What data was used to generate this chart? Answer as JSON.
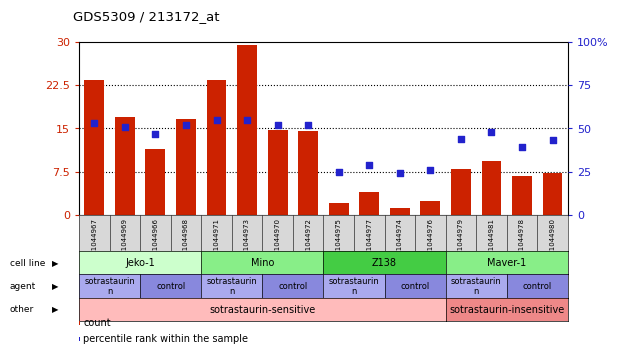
{
  "title": "GDS5309 / 213172_at",
  "samples": [
    "GSM1044967",
    "GSM1044969",
    "GSM1044966",
    "GSM1044968",
    "GSM1044971",
    "GSM1044973",
    "GSM1044970",
    "GSM1044972",
    "GSM1044975",
    "GSM1044977",
    "GSM1044974",
    "GSM1044976",
    "GSM1044979",
    "GSM1044981",
    "GSM1044978",
    "GSM1044980"
  ],
  "counts": [
    23.3,
    17.0,
    11.5,
    16.7,
    23.3,
    29.5,
    14.8,
    14.6,
    2.0,
    4.0,
    1.2,
    2.5,
    8.0,
    9.3,
    6.8,
    7.2
  ],
  "percentiles": [
    53,
    51,
    47,
    52,
    55,
    55,
    52,
    52,
    25,
    29,
    24,
    26,
    44,
    48,
    39,
    43
  ],
  "ylim_left": [
    0,
    30
  ],
  "ylim_right": [
    0,
    100
  ],
  "yticks_left": [
    0,
    7.5,
    15,
    22.5,
    30
  ],
  "yticks_right": [
    0,
    25,
    50,
    75,
    100
  ],
  "bar_color": "#CC2200",
  "dot_color": "#2222CC",
  "cell_lines": [
    {
      "label": "Jeko-1",
      "start": 0,
      "end": 4,
      "color": "#CCFFCC"
    },
    {
      "label": "Mino",
      "start": 4,
      "end": 8,
      "color": "#88EE88"
    },
    {
      "label": "Z138",
      "start": 8,
      "end": 12,
      "color": "#44CC44"
    },
    {
      "label": "Maver-1",
      "start": 12,
      "end": 16,
      "color": "#88EE88"
    }
  ],
  "agents": [
    {
      "label": "sotrastaurin",
      "start": 0,
      "end": 2,
      "color": "#AAAAEE"
    },
    {
      "label": "control",
      "start": 2,
      "end": 4,
      "color": "#8888DD"
    },
    {
      "label": "sotrastaurin",
      "start": 4,
      "end": 6,
      "color": "#AAAAEE"
    },
    {
      "label": "control",
      "start": 6,
      "end": 8,
      "color": "#8888DD"
    },
    {
      "label": "sotrastaurin",
      "start": 8,
      "end": 10,
      "color": "#AAAAEE"
    },
    {
      "label": "control",
      "start": 10,
      "end": 12,
      "color": "#8888DD"
    },
    {
      "label": "sotrastaurin",
      "start": 12,
      "end": 14,
      "color": "#AAAAEE"
    },
    {
      "label": "control",
      "start": 14,
      "end": 16,
      "color": "#8888DD"
    }
  ],
  "others": [
    {
      "label": "sotrastaurin-sensitive",
      "start": 0,
      "end": 12,
      "color": "#FFBBBB"
    },
    {
      "label": "sotrastaurin-insensitive",
      "start": 12,
      "end": 16,
      "color": "#EE8888"
    }
  ],
  "row_labels": [
    "cell line",
    "agent",
    "other"
  ],
  "legend_items": [
    {
      "color": "#CC2200",
      "label": "count"
    },
    {
      "color": "#2222CC",
      "label": "percentile rank within the sample"
    }
  ]
}
